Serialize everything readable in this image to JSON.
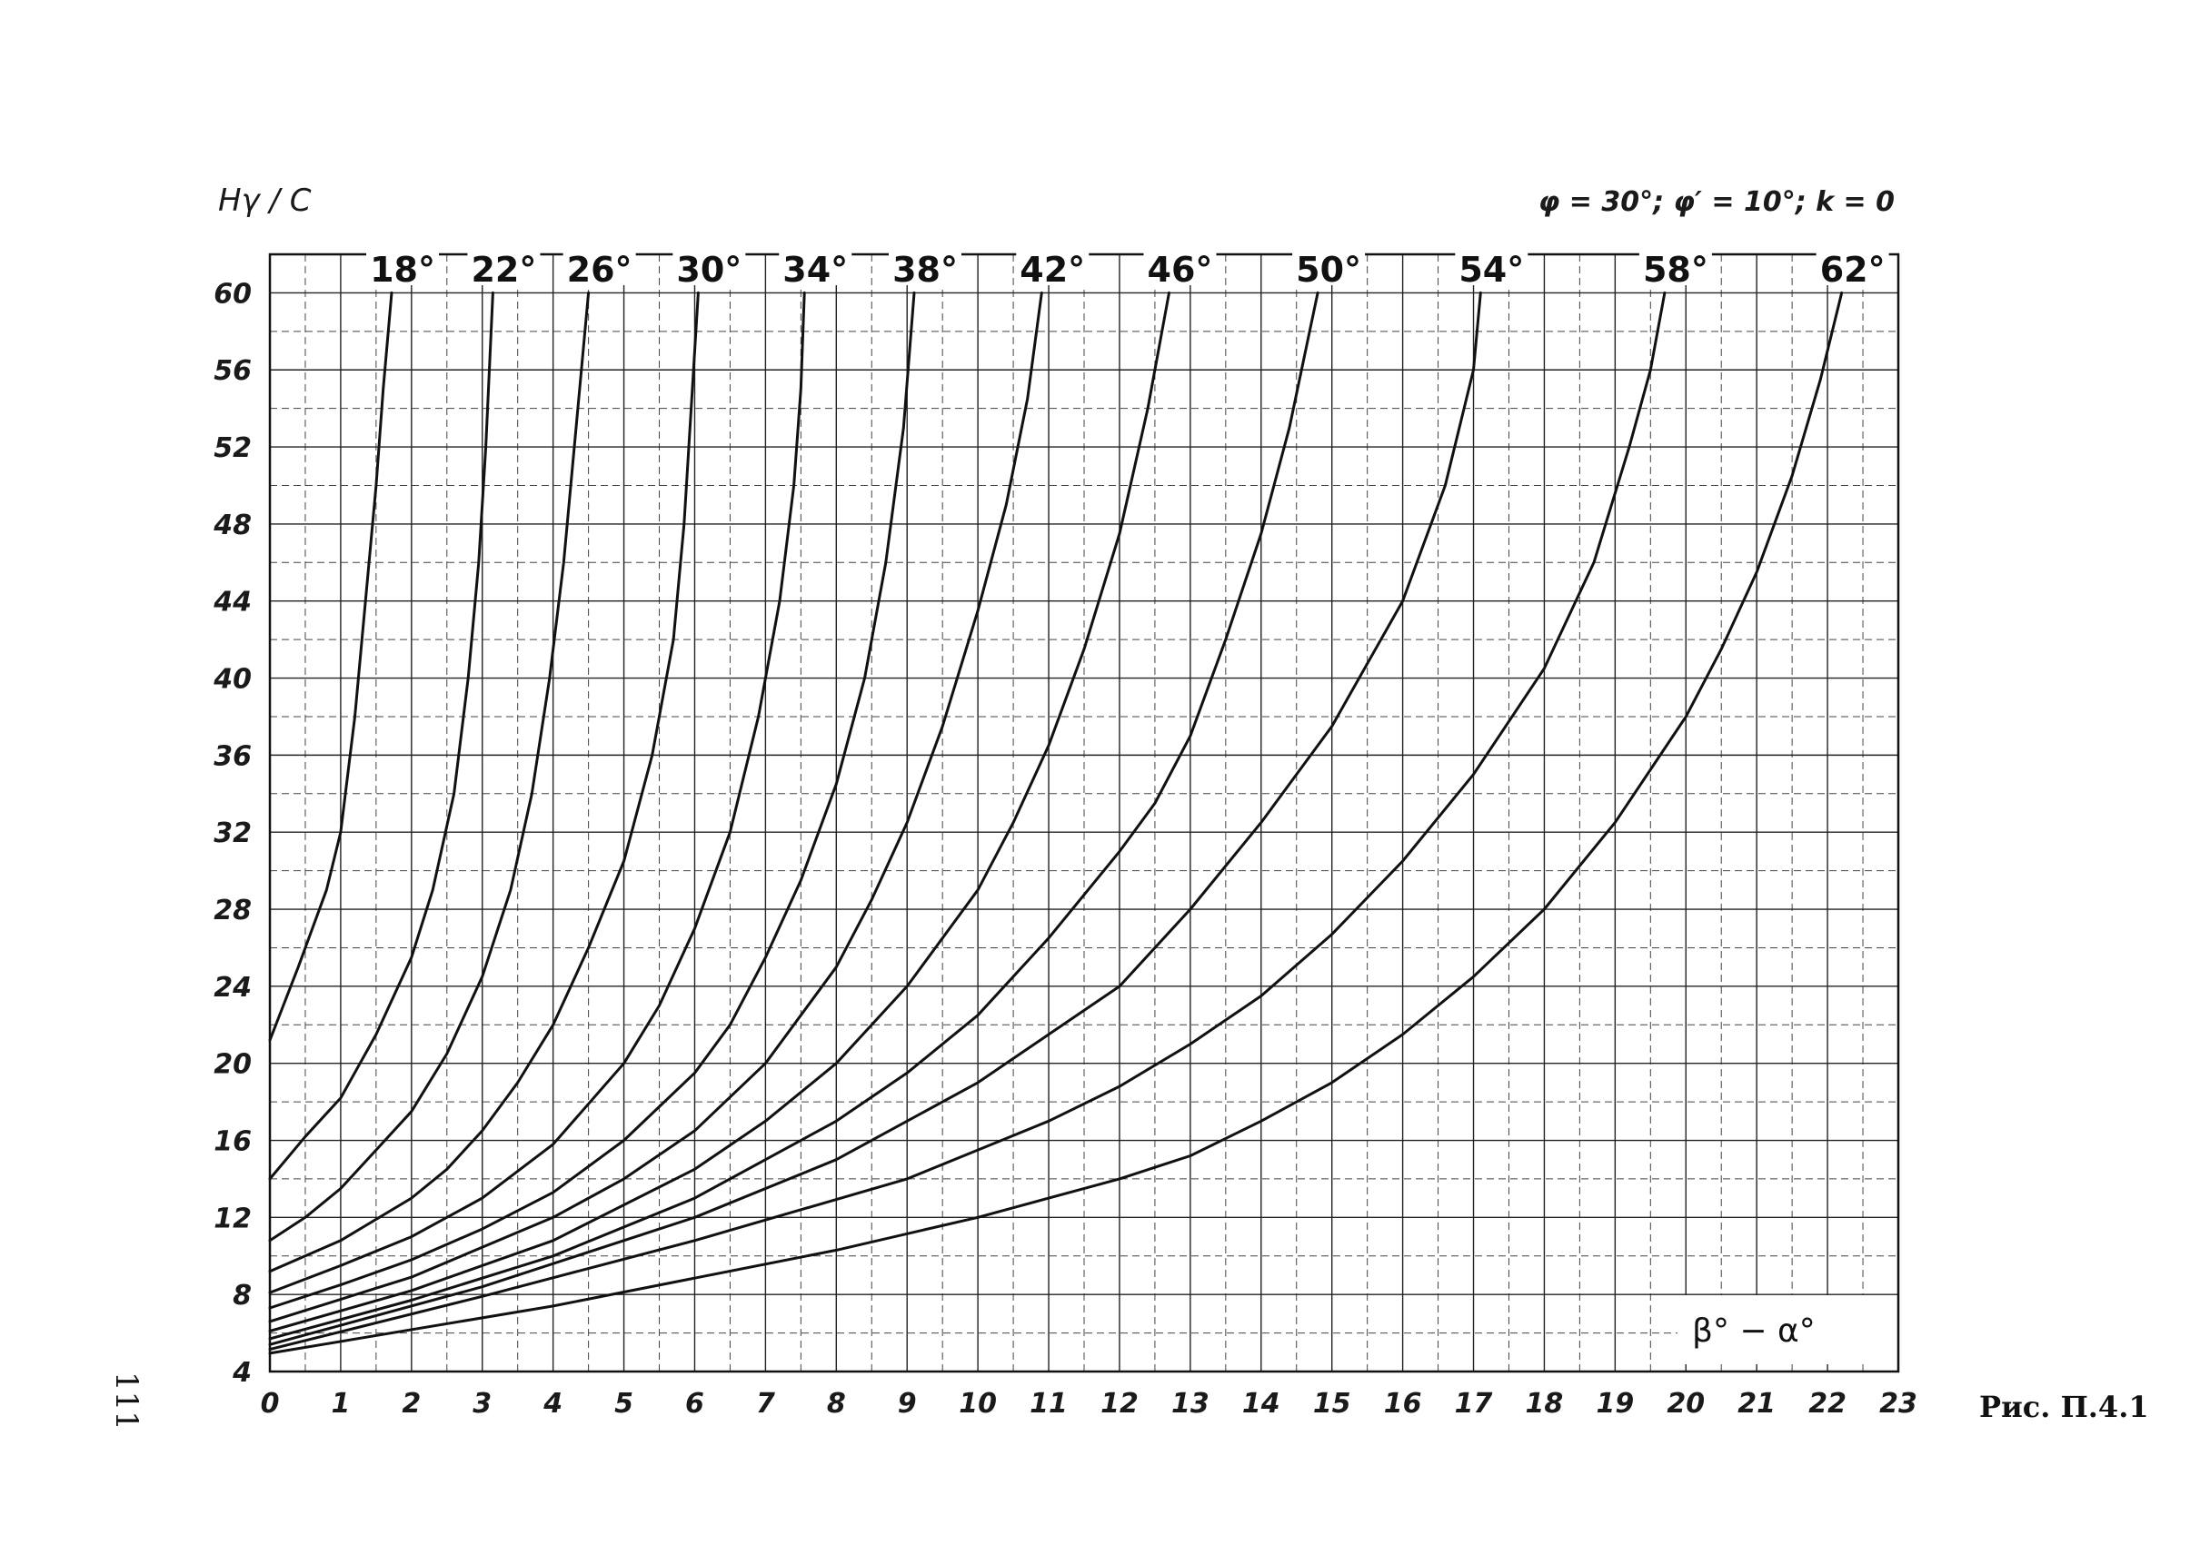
{
  "page": {
    "figure_caption": "Рис. П.4.1",
    "page_number": "111"
  },
  "chart_data": {
    "type": "line",
    "ylabel": "Hγ / C",
    "xlabel": "β° − α°",
    "parameters": "φ = 30°; φ′ = 10°; k = 0",
    "xlim": [
      0,
      23
    ],
    "ylim": [
      4,
      62
    ],
    "x_ticks": [
      "0",
      "1",
      "2",
      "3",
      "4",
      "5",
      "6",
      "7",
      "8",
      "9",
      "10",
      "11",
      "12",
      "13",
      "14",
      "15",
      "16",
      "17",
      "18",
      "19",
      "20",
      "21",
      "22",
      "23"
    ],
    "y_ticks": [
      "4",
      "8",
      "12",
      "16",
      "20",
      "24",
      "28",
      "32",
      "36",
      "40",
      "44",
      "48",
      "52",
      "56",
      "60"
    ],
    "grid": true,
    "series": [
      {
        "name": "18°",
        "points": [
          [
            0,
            21.2
          ],
          [
            0.4,
            25
          ],
          [
            0.8,
            29
          ],
          [
            1.0,
            32
          ],
          [
            1.2,
            38
          ],
          [
            1.35,
            44
          ],
          [
            1.5,
            50
          ],
          [
            1.6,
            55
          ],
          [
            1.72,
            60
          ]
        ]
      },
      {
        "name": "22°",
        "points": [
          [
            0,
            14
          ],
          [
            0.5,
            16.2
          ],
          [
            1,
            18.2
          ],
          [
            1.5,
            21.5
          ],
          [
            2,
            25.5
          ],
          [
            2.3,
            29
          ],
          [
            2.6,
            34
          ],
          [
            2.8,
            40
          ],
          [
            2.95,
            46
          ],
          [
            3.05,
            52
          ],
          [
            3.15,
            60
          ]
        ]
      },
      {
        "name": "26°",
        "points": [
          [
            0,
            10.8
          ],
          [
            0.5,
            12
          ],
          [
            1,
            13.5
          ],
          [
            1.5,
            15.5
          ],
          [
            2,
            17.5
          ],
          [
            2.5,
            20.5
          ],
          [
            3,
            24.5
          ],
          [
            3.4,
            29
          ],
          [
            3.7,
            34
          ],
          [
            3.95,
            40
          ],
          [
            4.15,
            46
          ],
          [
            4.3,
            52
          ],
          [
            4.5,
            60
          ]
        ]
      },
      {
        "name": "30°",
        "points": [
          [
            0,
            9.2
          ],
          [
            1,
            10.8
          ],
          [
            2,
            13
          ],
          [
            2.5,
            14.5
          ],
          [
            3,
            16.5
          ],
          [
            3.5,
            19
          ],
          [
            4,
            22
          ],
          [
            4.5,
            26
          ],
          [
            5,
            30.5
          ],
          [
            5.4,
            36
          ],
          [
            5.7,
            42
          ],
          [
            5.85,
            48
          ],
          [
            5.95,
            54
          ],
          [
            6.05,
            60
          ]
        ]
      },
      {
        "name": "34°",
        "points": [
          [
            0,
            8.1
          ],
          [
            1,
            9.5
          ],
          [
            2,
            11
          ],
          [
            3,
            13
          ],
          [
            4,
            15.8
          ],
          [
            5,
            20
          ],
          [
            5.5,
            23
          ],
          [
            6,
            27
          ],
          [
            6.5,
            32
          ],
          [
            6.9,
            38
          ],
          [
            7.2,
            44
          ],
          [
            7.4,
            50
          ],
          [
            7.5,
            55
          ],
          [
            7.55,
            60
          ]
        ]
      },
      {
        "name": "38°",
        "points": [
          [
            0,
            7.3
          ],
          [
            1,
            8.5
          ],
          [
            2,
            9.8
          ],
          [
            3,
            11.4
          ],
          [
            4,
            13.3
          ],
          [
            5,
            16
          ],
          [
            6,
            19.5
          ],
          [
            6.5,
            22
          ],
          [
            7,
            25.5
          ],
          [
            7.5,
            29.5
          ],
          [
            8,
            34.5
          ],
          [
            8.4,
            40
          ],
          [
            8.7,
            46
          ],
          [
            8.95,
            53
          ],
          [
            9.1,
            60
          ]
        ]
      },
      {
        "name": "42°",
        "points": [
          [
            0,
            6.6
          ],
          [
            2,
            8.9
          ],
          [
            4,
            12
          ],
          [
            5,
            14
          ],
          [
            6,
            16.5
          ],
          [
            7,
            20
          ],
          [
            8,
            25
          ],
          [
            8.5,
            28.5
          ],
          [
            9,
            32.5
          ],
          [
            9.5,
            37.5
          ],
          [
            10,
            43.5
          ],
          [
            10.4,
            49
          ],
          [
            10.7,
            54.5
          ],
          [
            10.9,
            60
          ]
        ]
      },
      {
        "name": "46°",
        "points": [
          [
            0,
            6.1
          ],
          [
            2,
            8.2
          ],
          [
            4,
            10.8
          ],
          [
            6,
            14.5
          ],
          [
            7,
            17
          ],
          [
            8,
            20
          ],
          [
            9,
            24
          ],
          [
            10,
            29
          ],
          [
            10.5,
            32.5
          ],
          [
            11,
            36.5
          ],
          [
            11.5,
            41.5
          ],
          [
            12,
            47.5
          ],
          [
            12.4,
            54
          ],
          [
            12.7,
            60
          ]
        ]
      },
      {
        "name": "50°",
        "points": [
          [
            0,
            5.7
          ],
          [
            2,
            7.7
          ],
          [
            4,
            10
          ],
          [
            6,
            13
          ],
          [
            8,
            17
          ],
          [
            9,
            19.5
          ],
          [
            10,
            22.5
          ],
          [
            11,
            26.5
          ],
          [
            12,
            31
          ],
          [
            12.5,
            33.5
          ],
          [
            13,
            37
          ],
          [
            13.5,
            42
          ],
          [
            14,
            47.5
          ],
          [
            14.4,
            53
          ],
          [
            14.8,
            60
          ]
        ]
      },
      {
        "name": "54°",
        "points": [
          [
            0,
            5.4
          ],
          [
            3,
            8.4
          ],
          [
            6,
            12
          ],
          [
            8,
            15
          ],
          [
            10,
            19
          ],
          [
            11,
            21.5
          ],
          [
            12,
            24
          ],
          [
            13,
            28
          ],
          [
            14,
            32.5
          ],
          [
            15,
            37.5
          ],
          [
            16,
            44
          ],
          [
            16.6,
            50
          ],
          [
            17,
            56
          ],
          [
            17.1,
            60
          ]
        ]
      },
      {
        "name": "58°",
        "points": [
          [
            0,
            5.15
          ],
          [
            3,
            7.9
          ],
          [
            6,
            10.8
          ],
          [
            9,
            14
          ],
          [
            10,
            15.5
          ],
          [
            11,
            17
          ],
          [
            12,
            18.8
          ],
          [
            13,
            21
          ],
          [
            14,
            23.5
          ],
          [
            15,
            26.7
          ],
          [
            16,
            30.5
          ],
          [
            17,
            35
          ],
          [
            18,
            40.5
          ],
          [
            18.7,
            46
          ],
          [
            19.2,
            52
          ],
          [
            19.5,
            56
          ],
          [
            19.7,
            60
          ]
        ]
      },
      {
        "name": "62°",
        "points": [
          [
            0,
            4.95
          ],
          [
            4,
            7.4
          ],
          [
            8,
            10.3
          ],
          [
            10,
            12
          ],
          [
            12,
            14
          ],
          [
            13,
            15.2
          ],
          [
            14,
            17
          ],
          [
            15,
            19
          ],
          [
            16,
            21.5
          ],
          [
            17,
            24.5
          ],
          [
            18,
            28
          ],
          [
            19,
            32.5
          ],
          [
            20,
            38
          ],
          [
            20.5,
            41.5
          ],
          [
            21,
            45.5
          ],
          [
            21.5,
            50.5
          ],
          [
            21.9,
            55.5
          ],
          [
            22.2,
            60
          ]
        ]
      }
    ]
  }
}
